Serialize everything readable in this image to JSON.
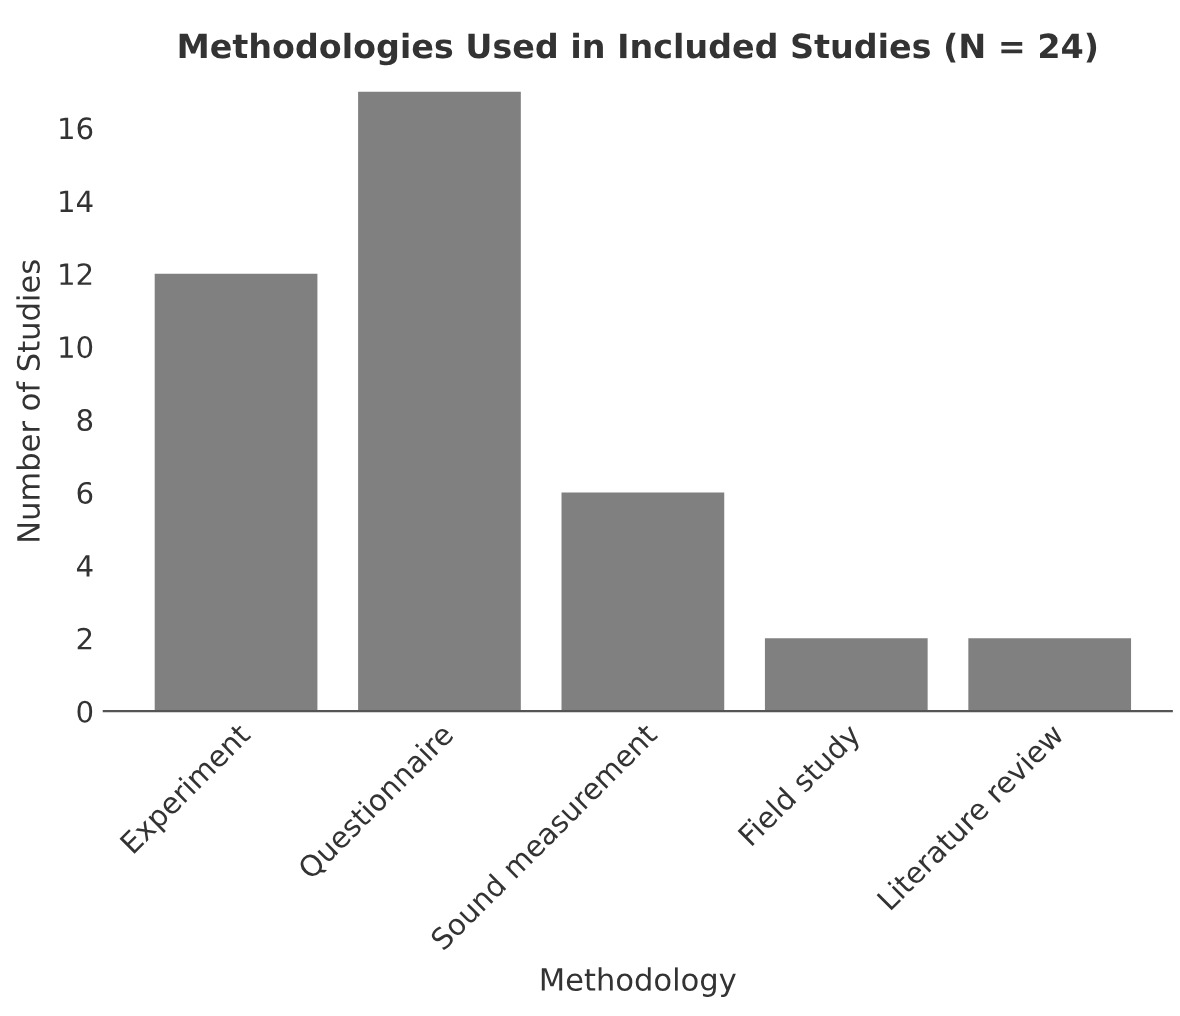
{
  "chart_data": {
    "type": "bar",
    "title": "Methodologies Used in Included Studies (N = 24)",
    "xlabel": "Methodology",
    "ylabel": "Number of Studies",
    "categories": [
      "Experiment",
      "Questionnaire",
      "Sound measurement",
      "Field study",
      "Literature review"
    ],
    "values": [
      12,
      17,
      6,
      2,
      2
    ],
    "color": "#808080",
    "ylim": [
      0,
      17
    ],
    "yticks": [
      0,
      2,
      4,
      6,
      8,
      10,
      12,
      14,
      16
    ],
    "grid": false,
    "legend": false
  }
}
